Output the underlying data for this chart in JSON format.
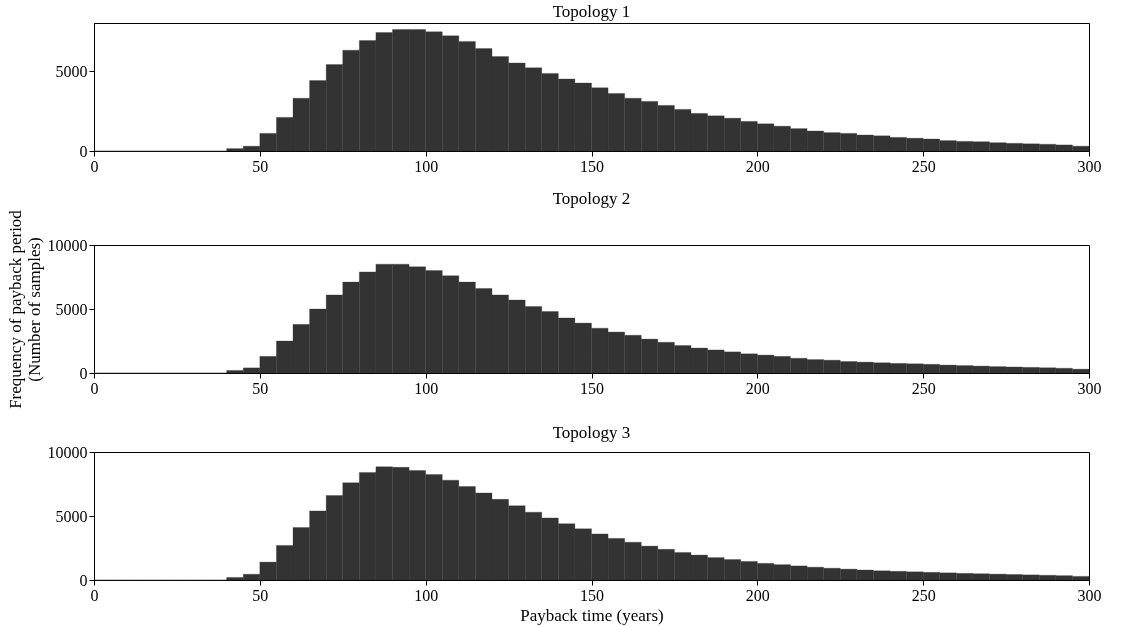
{
  "chart_data": [
    {
      "type": "histogram",
      "title": "Topology 1",
      "color": "#333333",
      "xlim": [
        0,
        300
      ],
      "xticks": [
        0,
        50,
        100,
        150,
        200,
        250,
        300
      ],
      "ylim": [
        0,
        8000
      ],
      "yticks": [
        0,
        5000
      ],
      "grid": false,
      "bins": [
        0,
        5,
        10,
        15,
        20,
        25,
        30,
        35,
        40,
        45,
        50,
        55,
        60,
        65,
        70,
        75,
        80,
        85,
        90,
        95,
        100,
        105,
        110,
        115,
        120,
        125,
        130,
        135,
        140,
        145,
        150,
        155,
        160,
        165,
        170,
        175,
        180,
        185,
        190,
        195,
        200,
        205,
        210,
        215,
        220,
        225,
        230,
        235,
        240,
        245,
        250,
        255,
        260,
        265,
        270,
        275,
        280,
        285,
        290,
        295,
        300
      ],
      "values": [
        0,
        0,
        0,
        0,
        0,
        0,
        0,
        0,
        150,
        300,
        1100,
        2100,
        3300,
        4400,
        5400,
        6300,
        6900,
        7400,
        7600,
        7600,
        7450,
        7200,
        6850,
        6400,
        5900,
        5500,
        5200,
        4850,
        4500,
        4250,
        3950,
        3600,
        3300,
        3100,
        2850,
        2600,
        2350,
        2200,
        2050,
        1850,
        1700,
        1550,
        1400,
        1250,
        1150,
        1100,
        1000,
        950,
        850,
        800,
        750,
        650,
        600,
        580,
        520,
        480,
        450,
        420,
        380,
        300
      ]
    },
    {
      "type": "histogram",
      "title": "Topology 2",
      "ylabel": "Frequency of payback period\n(Number of samples)",
      "color": "#333333",
      "xlim": [
        0,
        300
      ],
      "xticks": [
        0,
        50,
        100,
        150,
        200,
        250,
        300
      ],
      "ylim": [
        0,
        10000
      ],
      "yticks": [
        0,
        5000,
        10000
      ],
      "grid": false,
      "bins": [
        0,
        5,
        10,
        15,
        20,
        25,
        30,
        35,
        40,
        45,
        50,
        55,
        60,
        65,
        70,
        75,
        80,
        85,
        90,
        95,
        100,
        105,
        110,
        115,
        120,
        125,
        130,
        135,
        140,
        145,
        150,
        155,
        160,
        165,
        170,
        175,
        180,
        185,
        190,
        195,
        200,
        205,
        210,
        215,
        220,
        225,
        230,
        235,
        240,
        245,
        250,
        255,
        260,
        265,
        270,
        275,
        280,
        285,
        290,
        295,
        300
      ],
      "values": [
        0,
        0,
        0,
        0,
        0,
        0,
        0,
        0,
        200,
        400,
        1300,
        2500,
        3800,
        5000,
        6100,
        7100,
        7900,
        8500,
        8500,
        8300,
        8000,
        7600,
        7100,
        6600,
        6100,
        5700,
        5200,
        4800,
        4300,
        3900,
        3500,
        3200,
        2950,
        2650,
        2400,
        2150,
        1950,
        1800,
        1650,
        1500,
        1400,
        1300,
        1150,
        1050,
        1000,
        900,
        850,
        800,
        750,
        720,
        680,
        620,
        580,
        540,
        500,
        470,
        440,
        410,
        370,
        300
      ]
    },
    {
      "type": "histogram",
      "title": "Topology 3",
      "xlabel": "Payback time (years)",
      "color": "#333333",
      "xlim": [
        0,
        300
      ],
      "xticks": [
        0,
        50,
        100,
        150,
        200,
        250,
        300
      ],
      "ylim": [
        0,
        10000
      ],
      "yticks": [
        0,
        5000,
        10000
      ],
      "grid": false,
      "bins": [
        0,
        5,
        10,
        15,
        20,
        25,
        30,
        35,
        40,
        45,
        50,
        55,
        60,
        65,
        70,
        75,
        80,
        85,
        90,
        95,
        100,
        105,
        110,
        115,
        120,
        125,
        130,
        135,
        140,
        145,
        150,
        155,
        160,
        165,
        170,
        175,
        180,
        185,
        190,
        195,
        200,
        205,
        210,
        215,
        220,
        225,
        230,
        235,
        240,
        245,
        250,
        255,
        260,
        265,
        270,
        275,
        280,
        285,
        290,
        295,
        300
      ],
      "values": [
        0,
        0,
        0,
        0,
        0,
        0,
        0,
        0,
        200,
        450,
        1400,
        2700,
        4100,
        5400,
        6600,
        7600,
        8400,
        8850,
        8800,
        8550,
        8250,
        7800,
        7300,
        6800,
        6300,
        5800,
        5300,
        4850,
        4400,
        4000,
        3600,
        3250,
        2950,
        2650,
        2400,
        2150,
        1950,
        1750,
        1600,
        1450,
        1300,
        1200,
        1100,
        1000,
        920,
        850,
        780,
        720,
        680,
        640,
        600,
        560,
        520,
        490,
        460,
        430,
        400,
        370,
        340,
        280
      ]
    }
  ]
}
